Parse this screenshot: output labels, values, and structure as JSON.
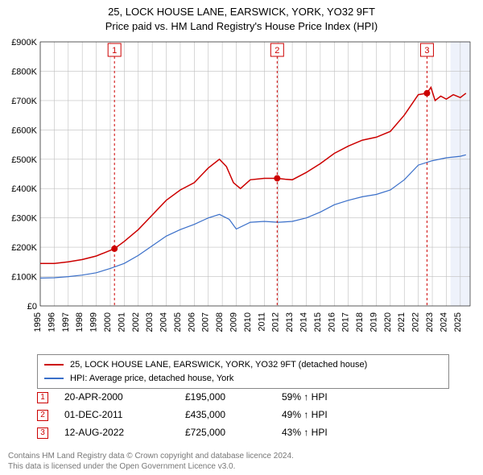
{
  "title": {
    "address": "25, LOCK HOUSE LANE, EARSWICK, YORK, YO32 9FT",
    "subtitle": "Price paid vs. HM Land Registry's House Price Index (HPI)"
  },
  "chart": {
    "type": "line",
    "background_color": "#ffffff",
    "grid_color": "#bfbfbf",
    "shaded_band_color": "#eef2fb",
    "xlim": [
      1995,
      2025.7
    ],
    "ylim": [
      0,
      900000
    ],
    "ytick_step": 100000,
    "ytick_labels": [
      "£0",
      "£100K",
      "£200K",
      "£300K",
      "£400K",
      "£500K",
      "£600K",
      "£700K",
      "£800K",
      "£900K"
    ],
    "xticks": [
      1995,
      1996,
      1997,
      1998,
      1999,
      2000,
      2001,
      2002,
      2003,
      2004,
      2005,
      2006,
      2007,
      2008,
      2009,
      2010,
      2011,
      2012,
      2013,
      2014,
      2015,
      2016,
      2017,
      2018,
      2019,
      2020,
      2021,
      2022,
      2023,
      2024,
      2025
    ],
    "series": [
      {
        "name": "property",
        "label": "25, LOCK HOUSE LANE, EARSWICK, YORK, YO32 9FT (detached house)",
        "color": "#cc0000",
        "line_width": 1.5,
        "points": [
          [
            1995.0,
            145000
          ],
          [
            1996.0,
            145000
          ],
          [
            1997.0,
            150000
          ],
          [
            1998.0,
            158000
          ],
          [
            1999.0,
            170000
          ],
          [
            2000.3,
            195000
          ],
          [
            2001.0,
            220000
          ],
          [
            2002.0,
            260000
          ],
          [
            2003.0,
            310000
          ],
          [
            2004.0,
            360000
          ],
          [
            2005.0,
            395000
          ],
          [
            2006.0,
            420000
          ],
          [
            2007.0,
            470000
          ],
          [
            2007.8,
            500000
          ],
          [
            2008.3,
            475000
          ],
          [
            2008.8,
            420000
          ],
          [
            2009.3,
            400000
          ],
          [
            2010.0,
            430000
          ],
          [
            2011.0,
            435000
          ],
          [
            2011.92,
            435000
          ],
          [
            2012.5,
            432000
          ],
          [
            2013.0,
            430000
          ],
          [
            2014.0,
            455000
          ],
          [
            2015.0,
            485000
          ],
          [
            2016.0,
            520000
          ],
          [
            2017.0,
            545000
          ],
          [
            2018.0,
            565000
          ],
          [
            2019.0,
            575000
          ],
          [
            2020.0,
            595000
          ],
          [
            2021.0,
            650000
          ],
          [
            2022.0,
            720000
          ],
          [
            2022.62,
            725000
          ],
          [
            2022.9,
            745000
          ],
          [
            2023.2,
            700000
          ],
          [
            2023.6,
            715000
          ],
          [
            2024.0,
            705000
          ],
          [
            2024.5,
            720000
          ],
          [
            2025.0,
            710000
          ],
          [
            2025.4,
            725000
          ]
        ]
      },
      {
        "name": "hpi",
        "label": "HPI: Average price, detached house, York",
        "color": "#3a6fc9",
        "line_width": 1.2,
        "points": [
          [
            1995.0,
            95000
          ],
          [
            1996.0,
            96000
          ],
          [
            1997.0,
            100000
          ],
          [
            1998.0,
            105000
          ],
          [
            1999.0,
            113000
          ],
          [
            2000.0,
            128000
          ],
          [
            2001.0,
            145000
          ],
          [
            2002.0,
            172000
          ],
          [
            2003.0,
            205000
          ],
          [
            2004.0,
            238000
          ],
          [
            2005.0,
            260000
          ],
          [
            2006.0,
            278000
          ],
          [
            2007.0,
            300000
          ],
          [
            2007.8,
            312000
          ],
          [
            2008.5,
            295000
          ],
          [
            2009.0,
            262000
          ],
          [
            2010.0,
            285000
          ],
          [
            2011.0,
            288000
          ],
          [
            2012.0,
            285000
          ],
          [
            2013.0,
            288000
          ],
          [
            2014.0,
            300000
          ],
          [
            2015.0,
            320000
          ],
          [
            2016.0,
            345000
          ],
          [
            2017.0,
            360000
          ],
          [
            2018.0,
            372000
          ],
          [
            2019.0,
            380000
          ],
          [
            2020.0,
            395000
          ],
          [
            2021.0,
            430000
          ],
          [
            2022.0,
            480000
          ],
          [
            2023.0,
            495000
          ],
          [
            2024.0,
            505000
          ],
          [
            2025.0,
            510000
          ],
          [
            2025.4,
            515000
          ]
        ]
      }
    ],
    "sale_markers": [
      {
        "n": 1,
        "x": 2000.3,
        "price": 195000
      },
      {
        "n": 2,
        "x": 2011.92,
        "price": 435000
      },
      {
        "n": 3,
        "x": 2022.62,
        "price": 725000
      }
    ],
    "sale_marker_style": {
      "box_border": "#cc0000",
      "box_fill": "#ffffff",
      "guide_color": "#cc0000",
      "guide_dash": "3,3",
      "dot_color": "#cc0000",
      "dot_radius": 4
    },
    "recent_band": {
      "from": 2024.3,
      "to": 2025.7
    }
  },
  "legend": {
    "items": [
      {
        "color": "#cc0000",
        "text": "25, LOCK HOUSE LANE, EARSWICK, YORK, YO32 9FT (detached house)"
      },
      {
        "color": "#3a6fc9",
        "text": "HPI: Average price, detached house, York"
      }
    ]
  },
  "sales": [
    {
      "n": "1",
      "date": "20-APR-2000",
      "price": "£195,000",
      "vs_hpi": "59% ↑ HPI"
    },
    {
      "n": "2",
      "date": "01-DEC-2011",
      "price": "£435,000",
      "vs_hpi": "49% ↑ HPI"
    },
    {
      "n": "3",
      "date": "12-AUG-2022",
      "price": "£725,000",
      "vs_hpi": "43% ↑ HPI"
    }
  ],
  "footer": {
    "line1": "Contains HM Land Registry data © Crown copyright and database licence 2024.",
    "line2": "This data is licensed under the Open Government Licence v3.0."
  }
}
